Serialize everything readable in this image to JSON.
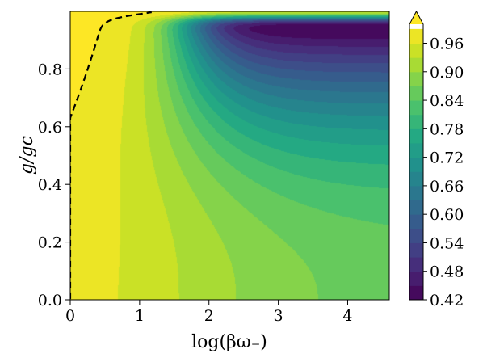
{
  "chart_data": {
    "type": "heatmap",
    "subtype": "filled-contour",
    "xlabel": "log(βω₋)",
    "ylabel": "g/gc",
    "xlim": [
      0,
      4.6
    ],
    "ylim": [
      0,
      1.0
    ],
    "x_ticks": [
      "0",
      "1",
      "2",
      "3",
      "4"
    ],
    "y_ticks": [
      "0.0",
      "0.2",
      "0.4",
      "0.6",
      "0.8"
    ],
    "colorbar": {
      "min": 0.42,
      "max": 1.0,
      "step": 0.03,
      "extend": "max",
      "tick_labels": [
        "0.42",
        "0.48",
        "0.54",
        "0.60",
        "0.66",
        "0.72",
        "0.78",
        "0.84",
        "0.90",
        "0.96"
      ],
      "colormap": "viridis"
    },
    "contour_line": {
      "level": 0.99,
      "style": "dashed",
      "color": "#000000"
    },
    "colors": [
      "#440154",
      "#482475",
      "#414487",
      "#355f8d",
      "#2a788e",
      "#21918c",
      "#22a884",
      "#44bf70",
      "#7ad151",
      "#bddf26",
      "#fde725"
    ]
  }
}
